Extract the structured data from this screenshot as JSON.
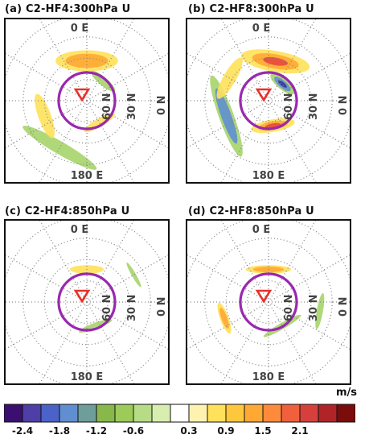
{
  "panels": [
    {
      "title": "(a) C2-HF4:300hPa U",
      "lon_top": "0 E",
      "lon_bottom": "180 E",
      "lat_inner": "60 N",
      "lat_outer": "30 N",
      "anomalies": [
        {
          "sign": "pos",
          "strength": 2,
          "angle": 0,
          "radius": 0.55,
          "extent": 0.5,
          "arc": 90
        },
        {
          "sign": "neg",
          "strength": 1,
          "angle": 40,
          "radius": 0.35,
          "extent": 0.2,
          "arc": 70
        },
        {
          "sign": "pos",
          "strength": 1,
          "angle": 150,
          "radius": 0.35,
          "extent": 0.2,
          "arc": 80
        },
        {
          "sign": "neg",
          "strength": 1,
          "angle": 210,
          "radius": 0.75,
          "extent": 0.3,
          "arc": 90
        },
        {
          "sign": "pos",
          "strength": 1,
          "angle": 250,
          "radius": 0.62,
          "extent": 0.3,
          "arc": 60
        }
      ]
    },
    {
      "title": "(b) C2-HF8:300hPa U",
      "lon_top": "0 E",
      "lon_bottom": "180 E",
      "lat_inner": "60 N",
      "lat_outer": "30 N",
      "anomalies": [
        {
          "sign": "pos",
          "strength": 3,
          "angle": 10,
          "radius": 0.55,
          "extent": 0.5,
          "arc": 100
        },
        {
          "sign": "neg",
          "strength": 3,
          "angle": 40,
          "radius": 0.3,
          "extent": 0.25,
          "arc": 80
        },
        {
          "sign": "pos",
          "strength": 3,
          "angle": 170,
          "radius": 0.35,
          "extent": 0.3,
          "arc": 100
        },
        {
          "sign": "neg",
          "strength": 2,
          "angle": 250,
          "radius": 0.62,
          "extent": 0.35,
          "arc": 110
        },
        {
          "sign": "pos",
          "strength": 1,
          "angle": 300,
          "radius": 0.62,
          "extent": 0.3,
          "arc": 60
        }
      ]
    },
    {
      "title": "(c) C2-HF4:850hPa U",
      "lon_top": "0 E",
      "lon_bottom": "180 E",
      "lat_inner": "60 N",
      "lat_outer": "30 N",
      "anomalies": [
        {
          "sign": "pos",
          "strength": 1,
          "angle": 0,
          "radius": 0.45,
          "extent": 0.2,
          "arc": 60
        },
        {
          "sign": "neg",
          "strength": 1,
          "angle": 160,
          "radius": 0.35,
          "extent": 0.15,
          "arc": 80
        },
        {
          "sign": "neg",
          "strength": 1,
          "angle": 60,
          "radius": 0.75,
          "extent": 0.1,
          "arc": 30
        }
      ]
    },
    {
      "title": "(d) C2-HF8:850hPa U",
      "lon_top": "0 E",
      "lon_bottom": "180 E",
      "lat_inner": "60 N",
      "lat_outer": "30 N",
      "anomalies": [
        {
          "sign": "pos",
          "strength": 2,
          "angle": 0,
          "radius": 0.45,
          "extent": 0.2,
          "arc": 80
        },
        {
          "sign": "neg",
          "strength": 1,
          "angle": 150,
          "radius": 0.38,
          "extent": 0.15,
          "arc": 90
        },
        {
          "sign": "pos",
          "strength": 2,
          "angle": 250,
          "radius": 0.65,
          "extent": 0.2,
          "arc": 40
        },
        {
          "sign": "neg",
          "strength": 1,
          "angle": 100,
          "radius": 0.72,
          "extent": 0.15,
          "arc": 40
        }
      ]
    }
  ],
  "colorbar": {
    "unit": "m/s",
    "colors": [
      "#3b0f6f",
      "#4d3ea8",
      "#4b63c8",
      "#5f8fd0",
      "#6f9d99",
      "#88b84a",
      "#9ccb5a",
      "#b7dc86",
      "#d7eeb0",
      "#ffffff",
      "#fff2b0",
      "#ffe15a",
      "#ffc83c",
      "#ffa834",
      "#ff8a3c",
      "#f0603c",
      "#d6403c",
      "#b02428",
      "#7a0c0c"
    ],
    "tick_labels": [
      "-2.4",
      "-1.8",
      "-1.2",
      "-0.6",
      "0.3",
      "0.9",
      "1.5",
      "2.1"
    ],
    "tick_boundary_index": [
      1,
      3,
      5,
      7,
      10,
      12,
      14,
      16
    ]
  }
}
